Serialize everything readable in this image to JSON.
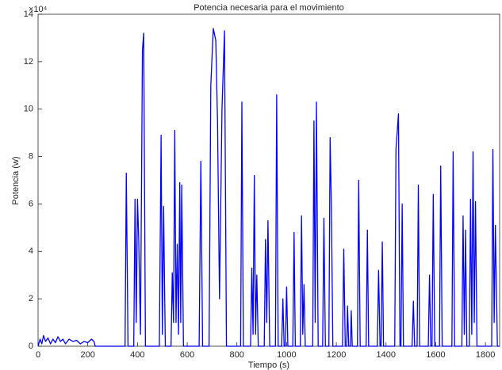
{
  "chart_data": {
    "type": "line",
    "title": "Potencia necesaria para el movimiento",
    "x_label": "Tiempo (s)",
    "y_label": "Potencia (w)",
    "y_exponent": "×10⁴",
    "xlim": [
      0,
      1857
    ],
    "ylim": [
      0,
      14
    ],
    "xticks": [
      0,
      200,
      400,
      600,
      800,
      1000,
      1200,
      1400,
      1600,
      1800
    ],
    "yticks": [
      0,
      2,
      4,
      6,
      8,
      10,
      12,
      14
    ],
    "grid": false,
    "series": [
      {
        "name": "Potencia",
        "color": "#0000ff",
        "x": [
          0,
          8,
          15,
          22,
          30,
          40,
          50,
          60,
          70,
          80,
          90,
          100,
          110,
          125,
          140,
          155,
          170,
          185,
          200,
          215,
          225,
          230,
          350,
          355,
          362,
          385,
          390,
          395,
          400,
          405,
          412,
          420,
          425,
          432,
          488,
          495,
          500,
          505,
          512,
          535,
          540,
          545,
          550,
          555,
          560,
          565,
          570,
          574,
          578,
          585,
          648,
          655,
          662,
          688,
          695,
          705,
          715,
          722,
          730,
          740,
          750,
          758,
          815,
          820,
          826,
          855,
          860,
          865,
          870,
          875,
          880,
          886,
          910,
          915,
          920,
          925,
          932,
          955,
          960,
          966,
          980,
          985,
          990,
          995,
          1000,
          1005,
          1025,
          1030,
          1035,
          1055,
          1060,
          1065,
          1070,
          1075,
          1105,
          1110,
          1115,
          1120,
          1127,
          1145,
          1150,
          1156,
          1170,
          1175,
          1180,
          1186,
          1225,
          1230,
          1236,
          1242,
          1245,
          1250,
          1257,
          1260,
          1264,
          1285,
          1290,
          1296,
          1320,
          1325,
          1330,
          1365,
          1370,
          1376,
          1380,
          1385,
          1390,
          1435,
          1440,
          1450,
          1456,
          1460,
          1465,
          1470,
          1505,
          1510,
          1515,
          1525,
          1530,
          1535,
          1570,
          1575,
          1580,
          1585,
          1590,
          1596,
          1615,
          1620,
          1626,
          1665,
          1670,
          1676,
          1705,
          1710,
          1715,
          1720,
          1725,
          1735,
          1740,
          1745,
          1750,
          1755,
          1760,
          1766,
          1825,
          1830,
          1835,
          1840,
          1848,
          1857
        ],
        "values": [
          0,
          0.3,
          0.1,
          0.45,
          0.2,
          0.35,
          0.1,
          0.3,
          0.15,
          0.4,
          0.2,
          0.3,
          0.1,
          0.3,
          0.2,
          0.25,
          0.1,
          0.2,
          0.15,
          0.3,
          0.2,
          0,
          0,
          7.3,
          0,
          0,
          6.2,
          1,
          6.2,
          4.5,
          0.5,
          12.5,
          13.2,
          0,
          0,
          8.9,
          0.5,
          5.9,
          0,
          0,
          3.1,
          1,
          9.1,
          1,
          4.3,
          0.5,
          6.9,
          1,
          6.8,
          0,
          0,
          7.8,
          0,
          0,
          11,
          13.4,
          12.9,
          9.5,
          2,
          10,
          13.3,
          0,
          0,
          10.3,
          0,
          0,
          3.3,
          0.5,
          7.2,
          0.5,
          3.0,
          0,
          0,
          4.5,
          1,
          5.3,
          0,
          0,
          10.6,
          0,
          0,
          2.0,
          0,
          0,
          2.5,
          0,
          0,
          4.8,
          0,
          0,
          5.5,
          0.5,
          2.6,
          0,
          0,
          9.5,
          1,
          10.3,
          0,
          0,
          5.4,
          0,
          0,
          8.8,
          6.0,
          0,
          0,
          4.1,
          0,
          0,
          1.7,
          0,
          0,
          1.5,
          0,
          0,
          7.0,
          0,
          0,
          4.9,
          0,
          0,
          3.2,
          0,
          0,
          4.4,
          0,
          0,
          8.3,
          9.8,
          0,
          0,
          6.0,
          0,
          0,
          1.9,
          0,
          0,
          6.8,
          0,
          0,
          3.0,
          0,
          0,
          6.4,
          0,
          0,
          7.6,
          0,
          0,
          8.2,
          0,
          0,
          5.5,
          0.5,
          4.9,
          0,
          0,
          6.2,
          0.5,
          8.2,
          1,
          6.1,
          0,
          0,
          8.3,
          1,
          5.1,
          0,
          0
        ]
      }
    ]
  }
}
